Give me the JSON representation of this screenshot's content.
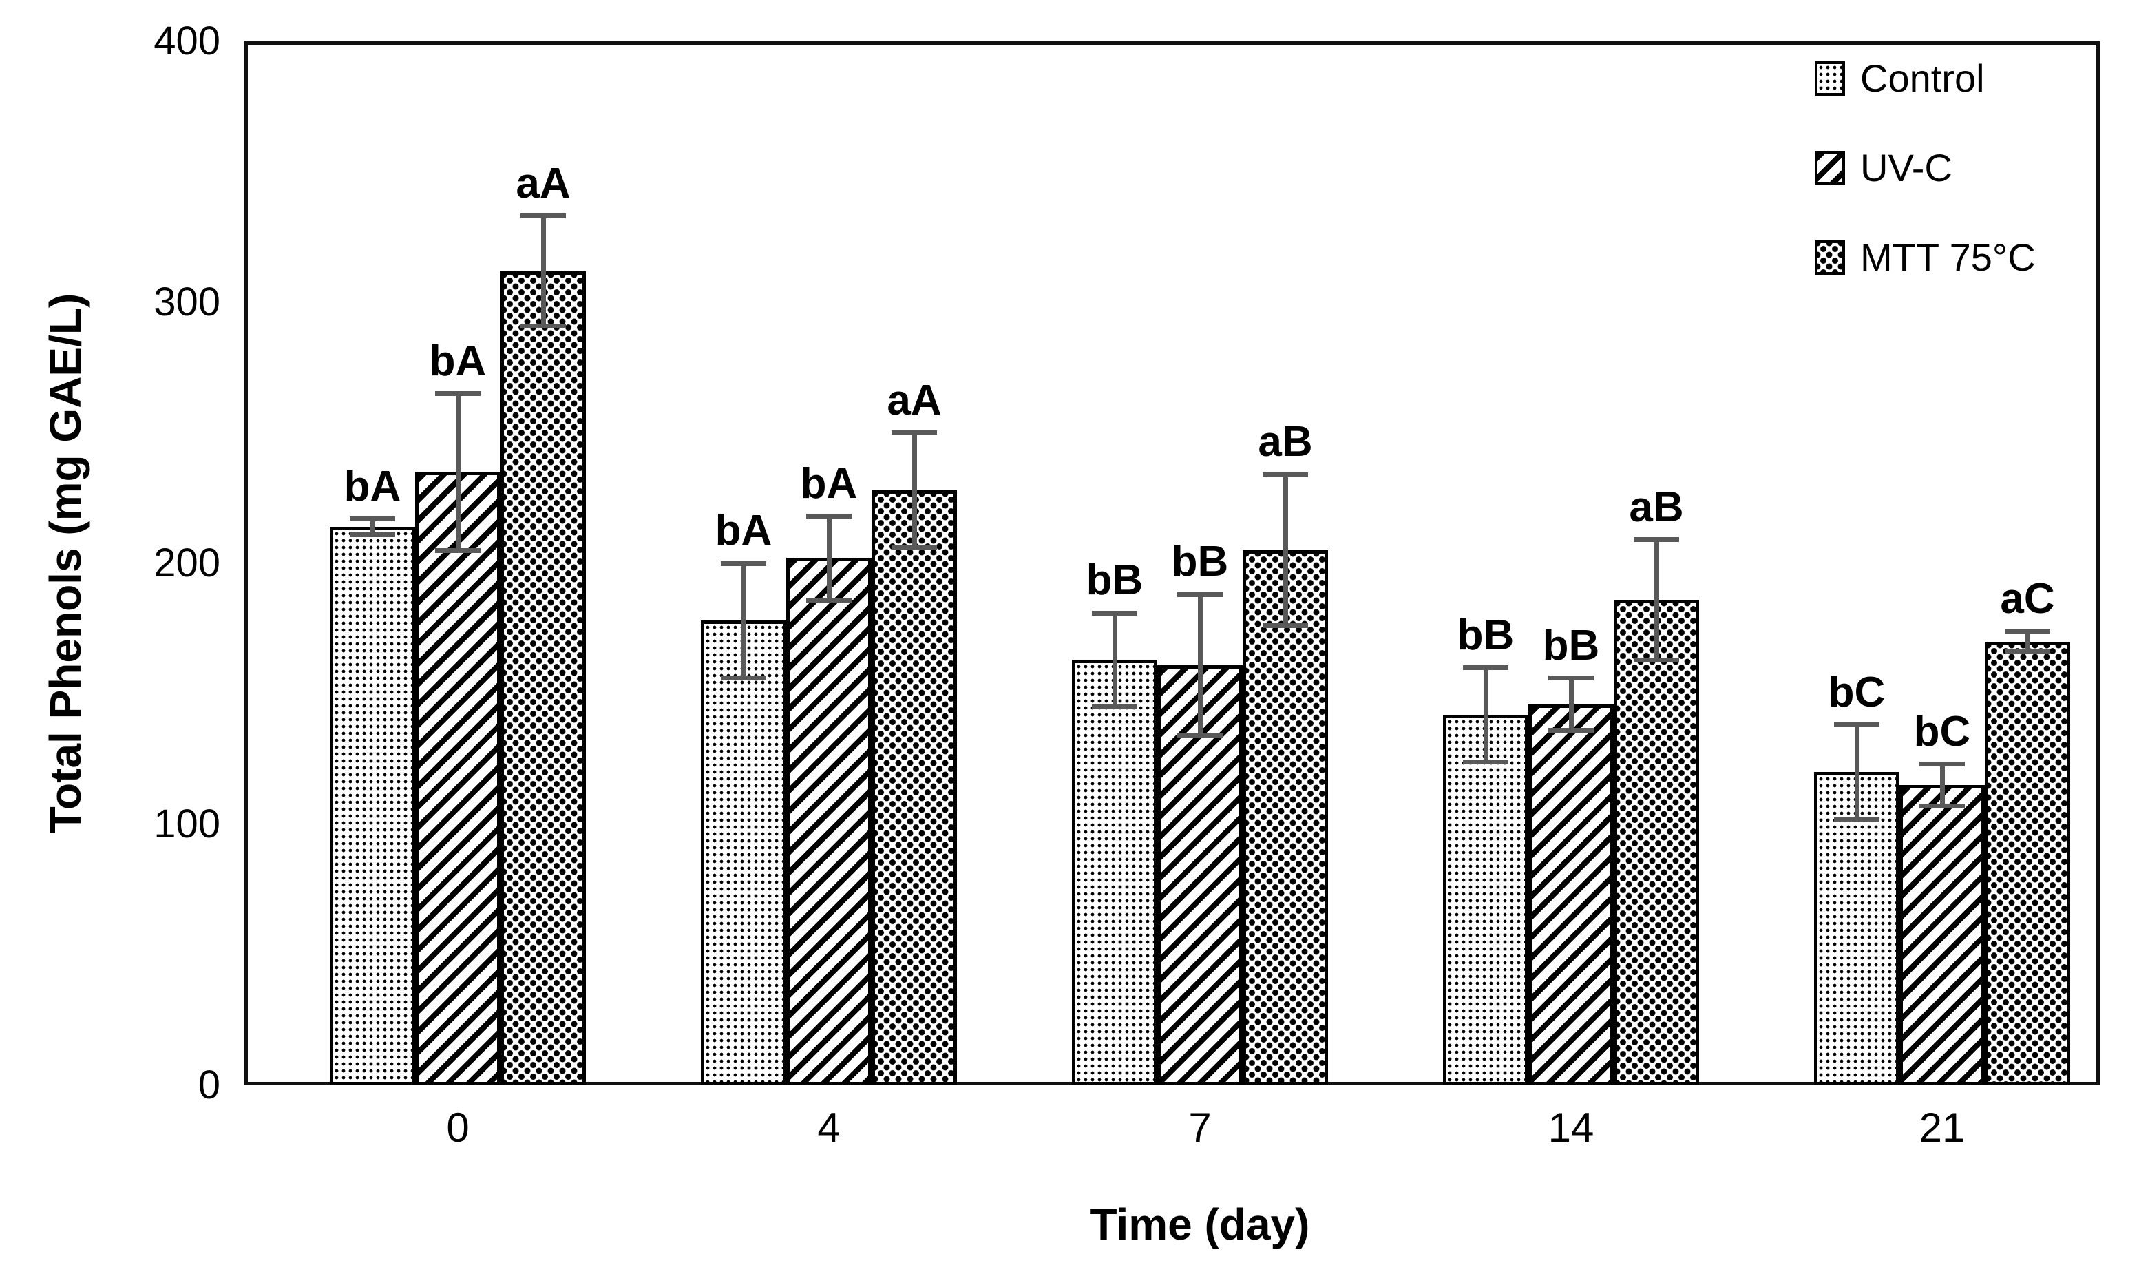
{
  "chart_data": {
    "type": "bar",
    "title": "",
    "xlabel": "Time (day)",
    "ylabel": "Total Phenols (mg GAE/L)",
    "categories": [
      "0",
      "4",
      "7",
      "14",
      "21"
    ],
    "ylim": [
      0,
      400
    ],
    "yticks": [
      0,
      100,
      200,
      300,
      400
    ],
    "grid": false,
    "legend_position": "top-right-inside",
    "series": [
      {
        "name": "Control",
        "pattern": "fine-dot-grid",
        "values": [
          214,
          178,
          163,
          142,
          120
        ],
        "errors": [
          3,
          22,
          18,
          18,
          18
        ],
        "point_labels": [
          "bA",
          "bA",
          "bB",
          "bB",
          "bC"
        ]
      },
      {
        "name": "UV-C",
        "pattern": "diagonal-hatch",
        "values": [
          235,
          202,
          161,
          146,
          115
        ],
        "errors": [
          30,
          16,
          27,
          10,
          8
        ],
        "point_labels": [
          "bA",
          "bA",
          "bB",
          "bB",
          "bC"
        ]
      },
      {
        "name": "MTT 75°C",
        "pattern": "checkerboard",
        "values": [
          312,
          228,
          205,
          186,
          170
        ],
        "errors": [
          21,
          22,
          29,
          23,
          4
        ],
        "point_labels": [
          "aA",
          "aA",
          "aB",
          "aB",
          "aC"
        ]
      }
    ]
  },
  "colors": {
    "error_bar": "#595959",
    "axis": "#111111",
    "bar_fill": "#ffffff",
    "bar_stroke": "#000000",
    "background": "#ffffff",
    "text": "#000000"
  }
}
